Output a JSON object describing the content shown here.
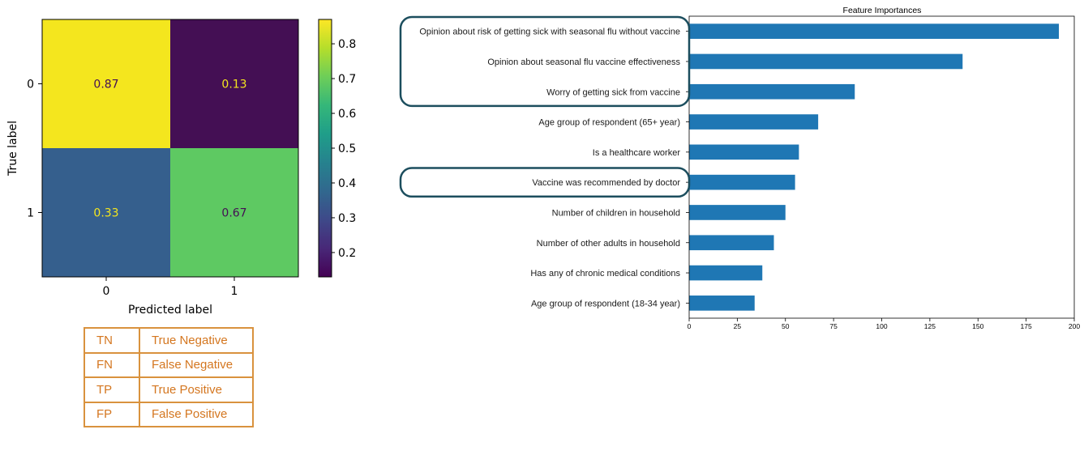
{
  "confusion_matrix": {
    "chart_data": {
      "type": "heatmap",
      "row_labels": [
        "0",
        "1"
      ],
      "col_labels": [
        "0",
        "1"
      ],
      "values": [
        [
          0.87,
          0.13
        ],
        [
          0.33,
          0.67
        ]
      ],
      "cell_text": [
        [
          "0.87",
          "0.13"
        ],
        [
          "0.33",
          "0.67"
        ]
      ],
      "xlabel": "Predicted label",
      "ylabel": "True label",
      "colorbar": {
        "min": 0.13,
        "max": 0.87,
        "ticks": [
          "0.2",
          "0.3",
          "0.4",
          "0.5",
          "0.6",
          "0.7",
          "0.8"
        ]
      },
      "colormap": "viridis"
    },
    "cell_colors": [
      [
        "#f4e61e",
        "#440f54"
      ],
      [
        "#355f8d",
        "#5ec962"
      ]
    ],
    "text_colors": [
      [
        "#440f54",
        "#f4e61e"
      ],
      [
        "#f4e61e",
        "#440f54"
      ]
    ]
  },
  "legend_table": {
    "rows": [
      {
        "abbr": "TN",
        "full": "True Negative"
      },
      {
        "abbr": "FN",
        "full": "False Negative"
      },
      {
        "abbr": "TP",
        "full": "True Positive"
      },
      {
        "abbr": "FP",
        "full": "False Positive"
      }
    ],
    "color": "#d4761f"
  },
  "feature_importances": {
    "chart_data": {
      "type": "bar",
      "orientation": "horizontal",
      "title": "Feature Importances",
      "categories": [
        "Opinion about risk of getting sick with seasonal flu without vaccine",
        "Opinion about seasonal flu vaccine effectiveness",
        "Worry of getting sick from vaccine",
        "Age group of respondent (65+ year)",
        "Is a healthcare worker",
        "Vaccine was recommended by doctor",
        "Number of children in household",
        "Number of other adults in household",
        "Has any of  chronic medical conditions",
        "Age group of respondent (18-34 year)"
      ],
      "values": [
        192,
        142,
        86,
        67,
        57,
        55,
        50,
        44,
        38,
        34
      ],
      "xlim": [
        0,
        200
      ],
      "xticks": [
        "0",
        "25",
        "50",
        "75",
        "100",
        "125",
        "150",
        "175",
        "200"
      ],
      "grid": false,
      "highlighted_groups": [
        [
          0,
          1,
          2
        ],
        [
          5
        ]
      ]
    },
    "bar_color": "#1f77b4",
    "highlight_color": "#1c4e5e"
  }
}
